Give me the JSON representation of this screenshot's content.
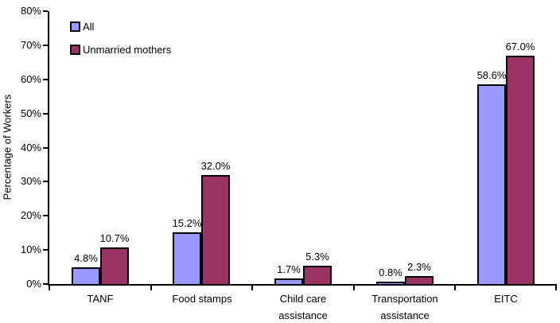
{
  "chart_data": {
    "type": "bar",
    "title": "",
    "xlabel": "",
    "ylabel": "Percentage of Workers",
    "ylim": [
      0,
      80
    ],
    "ytick_labels": [
      "0%",
      "10%",
      "20%",
      "30%",
      "40%",
      "50%",
      "60%",
      "70%",
      "80%"
    ],
    "grid": false,
    "legend_position": "top-left-inside",
    "background_color": "#FFFFFF",
    "axis_color": "#000000",
    "bar_border_color": "#000000",
    "categories": [
      "TANF",
      "Food stamps",
      "Child care\nassistance",
      "Transportation\nassistance",
      "EITC"
    ],
    "series": [
      {
        "name": "All",
        "color": "#9999FF",
        "values": [
          4.8,
          15.2,
          1.7,
          0.8,
          58.6
        ],
        "labels": [
          "4.8%",
          "15.2%",
          "1.7%",
          "0.8%",
          "58.6%"
        ]
      },
      {
        "name": "Unmarried mothers",
        "color": "#993366",
        "values": [
          10.7,
          32.0,
          5.3,
          2.3,
          67.0
        ],
        "labels": [
          "10.7%",
          "32.0%",
          "5.3%",
          "2.3%",
          "67.0%"
        ]
      }
    ]
  }
}
